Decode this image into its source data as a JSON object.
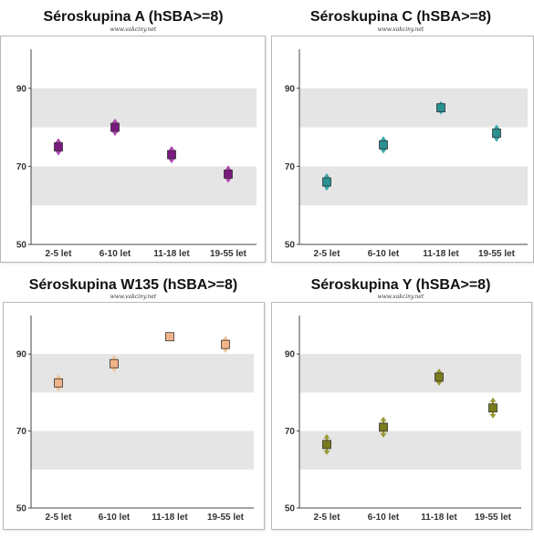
{
  "chart_data": [
    {
      "type": "scatter",
      "title": "Séroskupina A (hSBA>=8)",
      "source": "www.vakciny.net",
      "categories": [
        "2-5 let",
        "6-10 let",
        "11-18 let",
        "19-55 let"
      ],
      "values": [
        75,
        80,
        73,
        68
      ],
      "error_low": [
        73,
        78,
        71,
        66
      ],
      "error_high": [
        77,
        82,
        75,
        70
      ],
      "ylim": [
        50,
        100
      ],
      "yticks": [
        50,
        70,
        90
      ],
      "bands": [
        [
          60,
          70
        ],
        [
          80,
          90
        ]
      ],
      "color": "#7a1a7e",
      "arrow_color": "#b04ab6"
    },
    {
      "type": "scatter",
      "title": "Séroskupina C (hSBA>=8)",
      "source": "www.vakciny.net",
      "categories": [
        "2-5 let",
        "6-10 let",
        "11-18 let",
        "19-55 let"
      ],
      "values": [
        66,
        75.5,
        85,
        78.5
      ],
      "error_low": [
        64,
        73.5,
        83.5,
        76.5
      ],
      "error_high": [
        68,
        77.5,
        86.5,
        80.5
      ],
      "ylim": [
        50,
        100
      ],
      "yticks": [
        50,
        70,
        90
      ],
      "bands": [
        [
          60,
          70
        ],
        [
          80,
          90
        ]
      ],
      "color": "#2a9090",
      "arrow_color": "#3aa8a8"
    },
    {
      "type": "scatter",
      "title": "Séroskupina W135 (hSBA>=8)",
      "source": "www.vakciny.net",
      "categories": [
        "2-5 let",
        "6-10 let",
        "11-18 let",
        "19-55 let"
      ],
      "values": [
        82.5,
        87.5,
        94.5,
        92.5
      ],
      "error_low": [
        80.5,
        85.5,
        93.5,
        90.5
      ],
      "error_high": [
        84.5,
        89.5,
        95.5,
        94.5
      ],
      "ylim": [
        50,
        100
      ],
      "yticks": [
        50,
        70,
        90
      ],
      "bands": [
        [
          60,
          70
        ],
        [
          80,
          90
        ]
      ],
      "color": "#f2b48a",
      "arrow_color": "#f0c498"
    },
    {
      "type": "scatter",
      "title": "Séroskupina Y (hSBA>=8)",
      "source": "www.vakciny.net",
      "categories": [
        "2-5 let",
        "6-10 let",
        "11-18 let",
        "19-55 let"
      ],
      "values": [
        66.5,
        71,
        84,
        76
      ],
      "error_low": [
        64,
        68.5,
        82,
        73.5
      ],
      "error_high": [
        69,
        73.5,
        86,
        78.5
      ],
      "ylim": [
        50,
        100
      ],
      "yticks": [
        50,
        70,
        90
      ],
      "bands": [
        [
          60,
          70
        ],
        [
          80,
          90
        ]
      ],
      "color": "#7a7a1e",
      "arrow_color": "#9a9a32"
    }
  ]
}
